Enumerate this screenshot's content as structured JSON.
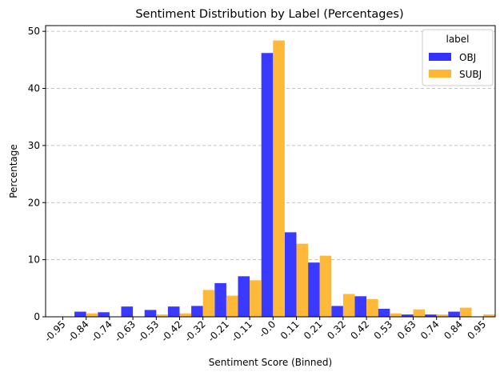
{
  "chart_data": {
    "type": "bar",
    "title": "Sentiment Distribution by Label (Percentages)",
    "xlabel": "Sentiment Score (Binned)",
    "ylabel": "Percentage",
    "categories": [
      "-0.95",
      "-0.84",
      "-0.74",
      "-0.63",
      "-0.53",
      "-0.42",
      "-0.32",
      "-0.21",
      "-0.11",
      "-0.0",
      "0.11",
      "0.21",
      "0.32",
      "0.42",
      "0.53",
      "0.63",
      "0.74",
      "0.84",
      "0.95"
    ],
    "series": [
      {
        "name": "OBJ",
        "color": "#3333ff",
        "values": [
          0,
          0.9,
          0.8,
          1.8,
          1.2,
          1.8,
          1.9,
          5.9,
          7.1,
          46.2,
          14.8,
          9.5,
          1.9,
          3.6,
          1.4,
          0.4,
          0.4,
          0.9,
          0
        ]
      },
      {
        "name": "SUBJ",
        "color": "#ffb733",
        "values": [
          0,
          0.6,
          0,
          0,
          0.4,
          0.6,
          4.7,
          3.7,
          6.4,
          48.4,
          12.8,
          10.7,
          4.0,
          3.1,
          0.6,
          1.3,
          0.4,
          1.6,
          0.4
        ]
      }
    ],
    "yticks": [
      0,
      10,
      20,
      30,
      40,
      50
    ],
    "ylim": [
      0,
      51
    ],
    "grid": "y-dashed",
    "legend": {
      "title": "label",
      "position": "top-right"
    }
  }
}
